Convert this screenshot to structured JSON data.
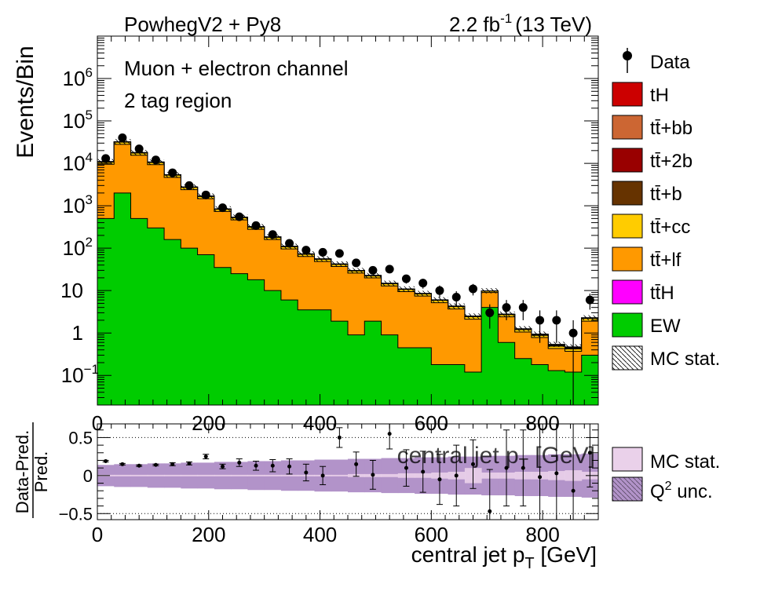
{
  "header": {
    "generator": "PowhegV2 + Py8",
    "lumi_main": "2.2 fb",
    "lumi_sup": "-1",
    "lumi_tail": "(13 TeV)"
  },
  "annotations": {
    "channel": "Muon + electron channel",
    "region": "2 tag region"
  },
  "legend_main": [
    {
      "key": "data",
      "label": "Data",
      "type": "marker",
      "color": "#000000"
    },
    {
      "key": "tH",
      "label": "tH",
      "type": "fill",
      "color": "#cc0000"
    },
    {
      "key": "ttbb",
      "label": "tt̄+bb",
      "type": "fill",
      "color": "#cc6633"
    },
    {
      "key": "tt2b",
      "label": "tt̄+2b",
      "type": "fill",
      "color": "#990000"
    },
    {
      "key": "ttb",
      "label": "tt̄+b",
      "type": "fill",
      "color": "#663300"
    },
    {
      "key": "ttcc",
      "label": "tt̄+cc",
      "type": "fill",
      "color": "#ffcc00"
    },
    {
      "key": "ttlf",
      "label": "tt̄+lf",
      "type": "fill",
      "color": "#ff9900"
    },
    {
      "key": "ttH",
      "label": "tt̄H",
      "type": "fill",
      "color": "#ff00ff"
    },
    {
      "key": "EW",
      "label": "EW",
      "type": "fill",
      "color": "#00cc00"
    },
    {
      "key": "mcstat",
      "label": "MC stat.",
      "type": "hatch",
      "color": "#000000"
    }
  ],
  "legend_ratio": [
    {
      "key": "mcstat",
      "label": "MC stat.",
      "color": "#ead1ea"
    },
    {
      "key": "q2",
      "label_main": "Q",
      "label_sup": "2",
      "label_tail": " unc.",
      "color": "#b293c9"
    }
  ],
  "chart_data": [
    {
      "type": "area",
      "panel": "main",
      "ylabel": "Events/Bin",
      "xlim": [
        0,
        900
      ],
      "ylim": [
        0.02,
        10000000
      ],
      "log_y": true,
      "x_ticks": [
        0,
        200,
        400,
        600,
        800
      ],
      "y_tick_labels": [
        {
          "value": 0.1,
          "base": "10",
          "exp": "−1"
        },
        {
          "value": 1,
          "base": "1",
          "exp": ""
        },
        {
          "value": 10,
          "base": "10",
          "exp": ""
        },
        {
          "value": 100,
          "base": "10",
          "exp": "2"
        },
        {
          "value": 1000,
          "base": "10",
          "exp": "3"
        },
        {
          "value": 10000,
          "base": "10",
          "exp": "4"
        },
        {
          "value": 100000,
          "base": "10",
          "exp": "5"
        },
        {
          "value": 1000000,
          "base": "10",
          "exp": "6"
        }
      ],
      "bin_edges": [
        0,
        30,
        60,
        90,
        120,
        150,
        180,
        210,
        240,
        270,
        300,
        330,
        360,
        390,
        420,
        450,
        480,
        510,
        540,
        570,
        600,
        630,
        660,
        690,
        720,
        750,
        780,
        810,
        840,
        870,
        900
      ],
      "series": [
        {
          "name": "EW",
          "values": [
            500,
            2000,
            500,
            300,
            160,
            100,
            70,
            35,
            25,
            18,
            10,
            6,
            3.5,
            3.5,
            1.9,
            0.9,
            1.9,
            0.9,
            0.45,
            0.45,
            0.18,
            0.18,
            0.12,
            4,
            0.6,
            0.25,
            0.18,
            0.13,
            0.12,
            0.3
          ]
        },
        {
          "name": "tt̄+lf",
          "values": [
            9000,
            26000,
            15000,
            9000,
            4500,
            2300,
            1400,
            700,
            440,
            260,
            150,
            90,
            60,
            45,
            35,
            25,
            18,
            12,
            9,
            7,
            5,
            3.5,
            2,
            5,
            1.8,
            0.8,
            0.6,
            0.3,
            0.25,
            1.6
          ]
        },
        {
          "name": "tt̄+cc",
          "values": [
            1200,
            3500,
            2000,
            1200,
            600,
            300,
            180,
            90,
            60,
            35,
            20,
            12,
            8,
            6,
            4.5,
            3.2,
            2.3,
            1.6,
            1.2,
            0.9,
            0.7,
            0.5,
            0.3,
            0.7,
            0.3,
            0.15,
            0.1,
            0.06,
            0.05,
            0.3
          ]
        },
        {
          "name": "tt̄+b",
          "values": [
            120,
            350,
            200,
            120,
            60,
            30,
            18,
            9,
            6,
            3.5,
            2,
            1.2,
            0.8,
            0.6,
            0.45,
            0.32,
            0.23,
            0.16,
            0.12,
            0.09,
            0.07,
            0.05,
            0.03,
            0.07,
            0.03,
            0.02,
            0.02,
            0.01,
            0.01,
            0.03
          ]
        },
        {
          "name": "tt̄+2b",
          "values": [
            60,
            170,
            100,
            60,
            30,
            15,
            9,
            4.5,
            3,
            1.8,
            1,
            0.6,
            0.4,
            0.3,
            0.22,
            0.16,
            0.12,
            0.08,
            0.06,
            0.05,
            0.04,
            0.03,
            0.02,
            0.04,
            0.02,
            0.01,
            0.01,
            0.01,
            0.01,
            0.02
          ]
        },
        {
          "name": "tt̄+bb",
          "values": [
            80,
            230,
            130,
            80,
            40,
            20,
            12,
            6,
            4,
            2.4,
            1.4,
            0.8,
            0.55,
            0.4,
            0.3,
            0.22,
            0.16,
            0.11,
            0.08,
            0.06,
            0.05,
            0.04,
            0.02,
            0.05,
            0.02,
            0.01,
            0.01,
            0.01,
            0.01,
            0.02
          ]
        },
        {
          "name": "tt̄H",
          "values": [
            12,
            35,
            20,
            12,
            6,
            3,
            1.8,
            0.9,
            0.6,
            0.35,
            0.2,
            0.12,
            0.08,
            0.06,
            0.05,
            0.03,
            0.02,
            0.02,
            0.01,
            0.01,
            0.01,
            0.01,
            0.01,
            0.01,
            0.01,
            0.01,
            0.01,
            0.01,
            0.01,
            0.01
          ]
        },
        {
          "name": "tH",
          "values": [
            2,
            6,
            3.5,
            2,
            1,
            0.5,
            0.3,
            0.15,
            0.1,
            0.06,
            0.04,
            0.02,
            0.02,
            0.01,
            0.01,
            0.01,
            0.01,
            0.01,
            0.01,
            0.01,
            0.01,
            0.01,
            0.01,
            0.01,
            0.01,
            0.01,
            0.01,
            0.01,
            0.01,
            0.01
          ]
        }
      ],
      "data": {
        "name": "Data",
        "x": [
          15,
          45,
          75,
          105,
          135,
          165,
          195,
          225,
          255,
          285,
          315,
          345,
          375,
          405,
          435,
          465,
          495,
          525,
          555,
          585,
          615,
          645,
          675,
          705,
          735,
          765,
          795,
          825,
          855,
          885
        ],
        "y": [
          13000,
          40000,
          22000,
          12000,
          6000,
          3000,
          1800,
          900,
          550,
          340,
          210,
          130,
          90,
          80,
          75,
          45,
          30,
          32,
          19,
          15,
          10,
          7,
          11,
          3,
          4,
          4,
          2,
          2,
          1,
          6
        ]
      }
    },
    {
      "type": "scatter",
      "panel": "ratio",
      "xlabel_main": "central jet p",
      "xlabel_sub": "T",
      "xlabel_tail": " [GeV]",
      "ylabel_num": "Data-Pred.",
      "ylabel_den": "Pred.",
      "xlim": [
        0,
        900
      ],
      "ylim": [
        -0.58,
        0.68
      ],
      "x_ticks": [
        0,
        200,
        400,
        600,
        800
      ],
      "y_ticks": [
        -0.5,
        0,
        0.5
      ],
      "y_tick_labels": [
        "−0.5",
        "0",
        "0.5"
      ],
      "dotted_lines": [
        -0.5,
        0.5
      ],
      "band_q2_halfwidth": [
        0.14,
        0.15,
        0.15,
        0.16,
        0.16,
        0.17,
        0.17,
        0.18,
        0.18,
        0.19,
        0.19,
        0.2,
        0.2,
        0.21,
        0.21,
        0.22,
        0.22,
        0.23,
        0.23,
        0.24,
        0.24,
        0.25,
        0.25,
        0.26,
        0.26,
        0.27,
        0.27,
        0.28,
        0.28,
        0.29
      ],
      "band_mcstat_halfwidth": [
        0.01,
        0.01,
        0.01,
        0.01,
        0.01,
        0.01,
        0.01,
        0.01,
        0.01,
        0.01,
        0.01,
        0.01,
        0.01,
        0.01,
        0.01,
        0.02,
        0.02,
        0.02,
        0.03,
        0.03,
        0.04,
        0.05,
        0.1,
        0.04,
        0.04,
        0.05,
        0.05,
        0.06,
        0.07,
        0.05
      ],
      "x": [
        15,
        45,
        75,
        105,
        135,
        165,
        195,
        225,
        255,
        285,
        315,
        345,
        375,
        405,
        435,
        465,
        495,
        525,
        555,
        585,
        615,
        645,
        675,
        705,
        735,
        765,
        795,
        825,
        855,
        885
      ],
      "ratio": [
        0.19,
        0.15,
        0.13,
        0.14,
        0.15,
        0.16,
        0.25,
        0.12,
        0.17,
        0.13,
        0.13,
        0.12,
        0.04,
        0.0,
        0.5,
        0.15,
        0.01,
        0.55,
        0.1,
        0.05,
        -0.05,
        0.0,
        0.15,
        -0.47,
        0.1,
        0.1,
        -0.02,
        0.03,
        -0.2,
        0.3
      ],
      "err": [
        0.01,
        0.01,
        0.01,
        0.01,
        0.02,
        0.02,
        0.03,
        0.03,
        0.05,
        0.06,
        0.08,
        0.1,
        0.11,
        0.12,
        0.13,
        0.16,
        0.19,
        0.2,
        0.24,
        0.27,
        0.33,
        0.4,
        0.32,
        0.55,
        0.5,
        0.5,
        0.7,
        0.7,
        1.0,
        0.45
      ],
      "overlay_label": "central jet p",
      "overlay_sub": "T",
      "overlay_tail": " [GeV]"
    }
  ]
}
